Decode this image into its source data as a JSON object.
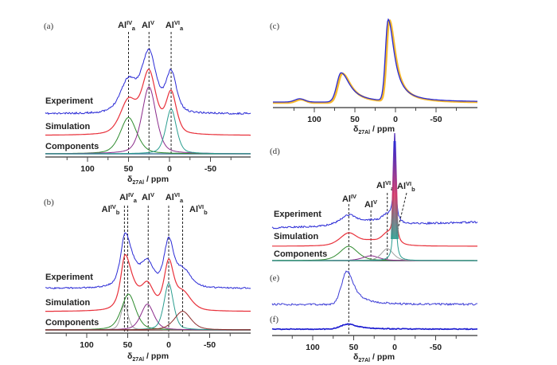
{
  "chart_data": [
    {
      "type": "line",
      "panel": "(a)",
      "xlabel": "δ27Al / ppm",
      "xlabel_main": "δ",
      "xlabel_sub": "27Al",
      "xlabel_unit": " / ppm",
      "xlim": [
        150,
        -95
      ],
      "xticks": [
        100,
        50,
        0,
        -50
      ],
      "xtick_labels": [
        "100",
        "50",
        "0",
        "-50"
      ],
      "minor_ticks": [
        125,
        75,
        25,
        -25,
        -75
      ],
      "trace_labels": [
        "Experiment",
        "Simulation",
        "Components"
      ],
      "site_lines": [
        {
          "ppm": 50,
          "base": "Al",
          "sup": "IV",
          "sub": "a"
        },
        {
          "ppm": 25,
          "base": "Al",
          "sup": "V",
          "sub": ""
        },
        {
          "ppm": -2,
          "base": "Al",
          "sup": "VI",
          "sub": "a"
        }
      ],
      "components": [
        {
          "name": "AlIVa",
          "center": 50,
          "width": 14,
          "height": 0.38,
          "color": "#2e8b2e"
        },
        {
          "name": "AlV",
          "center": 25,
          "width": 12,
          "height": 0.7,
          "color": "#8b2b8b"
        },
        {
          "name": "AlVIa",
          "center": -2,
          "width": 9,
          "height": 0.47,
          "color": "#2a9d8f"
        }
      ],
      "series_colors": {
        "experiment": "#2a2ad6",
        "simulation": "#e8303a",
        "baseline": "#4a7fa0"
      }
    },
    {
      "type": "line",
      "panel": "(b)",
      "xlabel": "δ27Al / ppm",
      "xlabel_main": "δ",
      "xlabel_sub": "27Al",
      "xlabel_unit": " / ppm",
      "xlim": [
        150,
        -95
      ],
      "xticks": [
        100,
        50,
        0,
        -50
      ],
      "xtick_labels": [
        "100",
        "50",
        "0",
        "-50"
      ],
      "minor_ticks": [
        125,
        75,
        25,
        -25,
        -75
      ],
      "trace_labels": [
        "Experiment",
        "Simulation",
        "Components"
      ],
      "site_lines": [
        {
          "ppm": 54,
          "base": "Al",
          "sup": "IV",
          "sub": "b"
        },
        {
          "ppm": 50,
          "base": "Al",
          "sup": "IV",
          "sub": "a"
        },
        {
          "ppm": 25,
          "base": "Al",
          "sup": "V",
          "sub": ""
        },
        {
          "ppm": 0,
          "base": "Al",
          "sup": "VI",
          "sub": "a"
        },
        {
          "ppm": -17,
          "base": "Al",
          "sup": "VI",
          "sub": "b"
        }
      ],
      "components": [
        {
          "name": "AlIVb",
          "center": 54,
          "width": 6,
          "height": 0.36,
          "color": "#a0a0a0"
        },
        {
          "name": "AlIVa",
          "center": 49,
          "width": 12,
          "height": 0.5,
          "color": "#2e8b2e"
        },
        {
          "name": "AlV",
          "center": 26,
          "width": 11,
          "height": 0.36,
          "color": "#8b2b8b"
        },
        {
          "name": "AlVIa",
          "center": 0,
          "width": 8,
          "height": 0.65,
          "color": "#2a9d8f"
        },
        {
          "name": "AlVIb",
          "center": -17,
          "width": 14,
          "height": 0.26,
          "color": "#8b2a2a"
        }
      ],
      "series_colors": {
        "experiment": "#2a2ad6",
        "simulation": "#e8303a",
        "baseline": "#5a1a1a"
      }
    },
    {
      "type": "line",
      "panel": "(c)",
      "xlabel": "δ27Al / ppm",
      "xlabel_main": "δ",
      "xlabel_sub": "27Al",
      "xlabel_unit": " / ppm",
      "xlim": [
        150,
        -95
      ],
      "xticks": [
        100,
        50,
        0,
        -50
      ],
      "xtick_labels": [
        "100",
        "50",
        "0",
        "-50"
      ],
      "minor_ticks": [
        125,
        75,
        25,
        -25,
        -75
      ],
      "peaks": [
        {
          "center": 118,
          "height": 0.04
        },
        {
          "center": 67,
          "height": 0.36
        },
        {
          "center": 9,
          "height": 1.0
        }
      ],
      "series_colors": {
        "experiment": "#2a2ad6",
        "simulation": "#f5b82e"
      }
    },
    {
      "type": "line",
      "panel": "(d)",
      "xlabel": "δ27Al / ppm",
      "xlabel_main": "δ",
      "xlabel_sub": "27Al",
      "xlabel_unit": " / ppm",
      "xlim": [
        150,
        -95
      ],
      "xticks": [
        100,
        50,
        0,
        -50
      ],
      "xtick_labels": [
        "100",
        "50",
        "0",
        "-50"
      ],
      "minor_ticks": [
        125,
        75,
        25,
        -25,
        -75
      ],
      "trace_labels": [
        "Experiment",
        "Simulation",
        "Components"
      ],
      "site_lines": [
        {
          "ppm": 56,
          "base": "Al",
          "sup": "IV",
          "sub": ""
        },
        {
          "ppm": 29,
          "base": "Al",
          "sup": "V",
          "sub": ""
        },
        {
          "ppm": 9,
          "base": "Al",
          "sup": "VI",
          "sub": "a"
        },
        {
          "ppm": 0,
          "base": "Al",
          "sup": "VI",
          "sub": "b"
        }
      ],
      "components": [
        {
          "name": "AlIV",
          "center": 56,
          "width": 15,
          "height": 0.12,
          "color": "#2e8b2e"
        },
        {
          "name": "AlV",
          "center": 29,
          "width": 14,
          "height": 0.04,
          "color": "#8b2b8b"
        },
        {
          "name": "AlVIa",
          "center": 9,
          "width": 10,
          "height": 0.1,
          "color": "#a0a0a0"
        },
        {
          "name": "AlVIb",
          "center": 0,
          "width": 1.5,
          "height": 1.0,
          "color": "#2a9d8f"
        }
      ],
      "series_colors": {
        "experiment": "#2a2ad6",
        "simulation": "#e8303a",
        "baseline": "#3a5a5a"
      }
    },
    {
      "type": "line",
      "panel": "(e)",
      "peaks": [
        {
          "center": 58,
          "height": 1.0
        }
      ],
      "series_colors": {
        "experiment": "#3a3ad6"
      }
    },
    {
      "type": "line",
      "panel": "(f)",
      "peaks": [
        {
          "center": 57,
          "height": 0.14
        }
      ],
      "series_colors": {
        "experiment": "#1a1ad0"
      }
    }
  ]
}
